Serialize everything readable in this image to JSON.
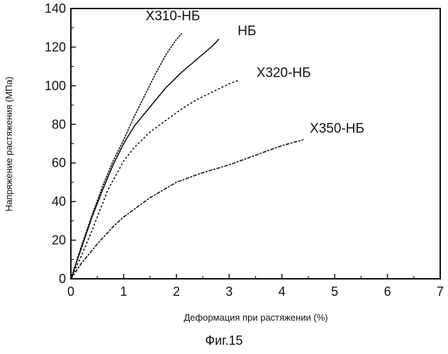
{
  "chart_data": {
    "type": "line",
    "xlabel": "Деформация при растяжении (%)",
    "ylabel": "Напряжение растяжения (МПа)",
    "xlim": [
      0,
      7
    ],
    "ylim": [
      0,
      140
    ],
    "xticks": [
      "0",
      "1",
      "2",
      "3",
      "4",
      "5",
      "6",
      "7"
    ],
    "yticks": [
      "0",
      "20",
      "40",
      "60",
      "80",
      "100",
      "120",
      "140"
    ],
    "grid": false,
    "series": [
      {
        "name": "Х310-НБ",
        "style": "dotted-dense",
        "x": [
          0,
          0.2,
          0.4,
          0.6,
          0.8,
          1.0,
          1.2,
          1.4,
          1.6,
          1.8,
          2.0,
          2.1
        ],
        "y": [
          0,
          17,
          33,
          48,
          61,
          72,
          84,
          95,
          106,
          116,
          124,
          127
        ]
      },
      {
        "name": "НБ",
        "style": "solid",
        "x": [
          0,
          0.2,
          0.4,
          0.6,
          0.8,
          1.0,
          1.2,
          1.5,
          1.8,
          2.1,
          2.4,
          2.7,
          2.8
        ],
        "y": [
          0,
          16,
          32,
          46,
          59,
          70,
          79,
          89,
          99,
          107,
          114,
          121,
          124
        ]
      },
      {
        "name": "Х320-НБ",
        "style": "dotted",
        "x": [
          0,
          0.2,
          0.4,
          0.7,
          1.0,
          1.2,
          1.5,
          1.8,
          2.1,
          2.4,
          2.7,
          3.0,
          3.2
        ],
        "y": [
          0,
          12,
          25,
          46,
          61,
          68,
          76,
          82,
          88,
          93,
          97,
          101,
          103
        ]
      },
      {
        "name": "Х350-НБ",
        "style": "dashdot",
        "x": [
          0,
          0.2,
          0.5,
          0.8,
          1.0,
          1.5,
          2.0,
          2.5,
          3.0,
          3.5,
          4.0,
          4.4
        ],
        "y": [
          0,
          8,
          18,
          27,
          32,
          42,
          50,
          55,
          59,
          64,
          69,
          72
        ]
      }
    ]
  },
  "figure": {
    "caption": "Фиг.15"
  },
  "colors": {
    "ink": "#111111",
    "background": "#ffffff"
  }
}
